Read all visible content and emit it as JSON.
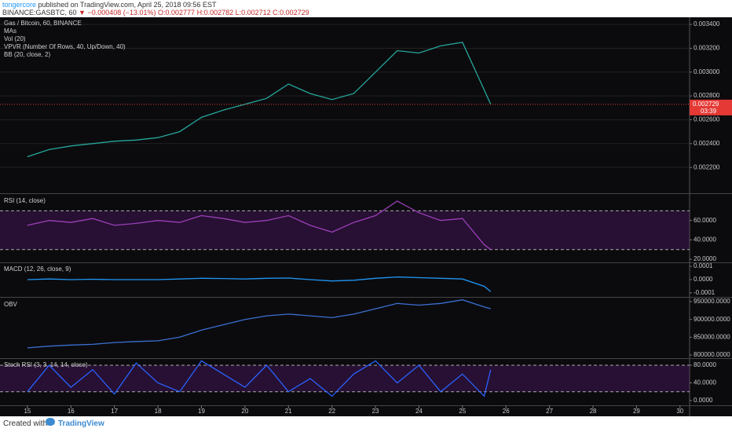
{
  "header": {
    "author": "tongercore",
    "published": "published on TradingView.com, April 25, 2018 09:56 EST",
    "symbol": "BINANCE:GASBTC, 60",
    "quote": "▼ −0.000408 (−13.01%) O:0.002777 H:0.002782 L:0.002712 C:0.002729"
  },
  "footer": {
    "created": "Created with",
    "brand": "TradingView"
  },
  "price_axis": {
    "last_price": "0.002729",
    "countdown": "03:39"
  },
  "chart_data": [
    {
      "type": "line",
      "title": "Gas / Bitcoin, 60, BINANCE",
      "legend": [
        "MAs",
        "Vol (20)",
        "VPVR (Number Of Rows, 40, Up/Down, 40)",
        "BB (20, close, 2)"
      ],
      "ylim": [
        0.00199,
        0.00346
      ],
      "yticks": [
        {
          "value": 0.0022,
          "label": "0.002200"
        },
        {
          "value": 0.0024,
          "label": "0.002400"
        },
        {
          "value": 0.0026,
          "label": "0.002600"
        },
        {
          "value": 0.0028,
          "label": "0.002800"
        },
        {
          "value": 0.003,
          "label": "0.003000"
        },
        {
          "value": 0.0032,
          "label": "0.003200"
        },
        {
          "value": 0.0034,
          "label": "0.003400"
        }
      ],
      "grid": true,
      "x": [
        15,
        15.5,
        16,
        16.5,
        17,
        17.5,
        18,
        18.5,
        19,
        19.5,
        20,
        20.5,
        21,
        21.5,
        22,
        22.5,
        23,
        23.5,
        24,
        24.5,
        25,
        25.5,
        25.65
      ],
      "series": [
        {
          "color": "#26a69a",
          "values": [
            0.00229,
            0.00235,
            0.00238,
            0.0024,
            0.00242,
            0.00243,
            0.00245,
            0.0025,
            0.00262,
            0.00268,
            0.00273,
            0.00278,
            0.0029,
            0.00282,
            0.00277,
            0.00282,
            0.003,
            0.00318,
            0.00316,
            0.00322,
            0.00325,
            0.00285,
            0.002729
          ]
        }
      ]
    },
    {
      "type": "line",
      "title": "RSI (14, close)",
      "ylim": [
        17.6,
        86.5
      ],
      "yticks": [
        {
          "value": 20,
          "label": "20.0000"
        },
        {
          "value": 40,
          "label": "40.0000"
        },
        {
          "value": 60,
          "label": "60.0000"
        }
      ],
      "bands": [
        30,
        70
      ],
      "band_color": "#7b1fa2",
      "x": [
        15,
        15.5,
        16,
        16.5,
        17,
        17.5,
        18,
        18.5,
        19,
        19.5,
        20,
        20.5,
        21,
        21.5,
        22,
        22.5,
        23,
        23.5,
        24,
        24.5,
        25,
        25.5,
        25.65
      ],
      "series": [
        {
          "color": "#9c3fb8",
          "values": [
            55,
            60,
            58,
            62,
            55,
            57,
            60,
            58,
            65,
            62,
            58,
            60,
            65,
            55,
            48,
            58,
            65,
            80,
            68,
            60,
            62,
            35,
            30
          ]
        }
      ]
    },
    {
      "type": "line",
      "title": "MACD (12, 26, close, 9)",
      "ylim": [
        -0.000124,
        0.000124
      ],
      "yticks": [
        {
          "value": -0.0001,
          "label": "-0.0001"
        },
        {
          "value": 0,
          "label": "0.0000"
        },
        {
          "value": 0.0001,
          "label": "0.0001"
        }
      ],
      "x": [
        15,
        15.5,
        16,
        16.5,
        17,
        17.5,
        18,
        18.5,
        19,
        19.5,
        20,
        20.5,
        21,
        21.5,
        22,
        22.5,
        23,
        23.5,
        24,
        24.5,
        25,
        25.5,
        25.65
      ],
      "series": [
        {
          "color": "#2196f3",
          "values": [
            0,
            5e-06,
            0,
            3e-06,
            0,
            0,
            0,
            5e-06,
            1e-05,
            8e-06,
            5e-06,
            1e-05,
            1.2e-05,
            0,
            -1e-05,
            -5e-06,
            1e-05,
            2e-05,
            1.5e-05,
            1e-05,
            5e-06,
            -5e-05,
            -9e-05
          ]
        }
      ]
    },
    {
      "type": "line",
      "title": "OBV",
      "ylim": [
        793400,
        958800
      ],
      "yticks": [
        {
          "value": 800000,
          "label": "800000.0000"
        },
        {
          "value": 850000,
          "label": "850000.0000"
        },
        {
          "value": 900000,
          "label": "900000.0000"
        },
        {
          "value": 950000,
          "label": "950000.0000"
        }
      ],
      "x": [
        15,
        15.5,
        16,
        16.5,
        17,
        17.5,
        18,
        18.5,
        19,
        19.5,
        20,
        20.5,
        21,
        21.5,
        22,
        22.5,
        23,
        23.5,
        24,
        24.5,
        25,
        25.5,
        25.65
      ],
      "series": [
        {
          "color": "#3c6fd1",
          "values": [
            820000,
            825000,
            828000,
            830000,
            835000,
            838000,
            840000,
            850000,
            870000,
            885000,
            900000,
            910000,
            915000,
            910000,
            905000,
            915000,
            930000,
            945000,
            940000,
            945000,
            955000,
            935000,
            930000
          ]
        }
      ]
    },
    {
      "type": "line",
      "title": "Stoch RSI (3, 3, 14, 14, close)",
      "ylim": [
        -8.9,
        94.2
      ],
      "yticks": [
        {
          "value": 0,
          "label": "0.0000"
        },
        {
          "value": 40,
          "label": "40.0000"
        },
        {
          "value": 80,
          "label": "80.0000"
        }
      ],
      "bands": [
        20,
        80
      ],
      "band_color": "#7b1fa2",
      "x": [
        15,
        15.5,
        16,
        16.5,
        17,
        17.5,
        18,
        18.5,
        19,
        19.5,
        20,
        20.5,
        21,
        21.5,
        22,
        22.5,
        23,
        23.5,
        24,
        24.5,
        25,
        25.5,
        25.65
      ],
      "series": [
        {
          "color": "#2962ff",
          "values": [
            20,
            80,
            30,
            70,
            15,
            85,
            40,
            20,
            90,
            60,
            30,
            80,
            20,
            50,
            10,
            60,
            90,
            40,
            80,
            20,
            60,
            10,
            70
          ]
        }
      ],
      "xlim": [
        14.37,
        30.22
      ],
      "xticks": [
        15,
        16,
        17,
        18,
        19,
        20,
        21,
        22,
        23,
        24,
        25,
        26,
        27,
        28,
        29,
        30
      ]
    }
  ]
}
